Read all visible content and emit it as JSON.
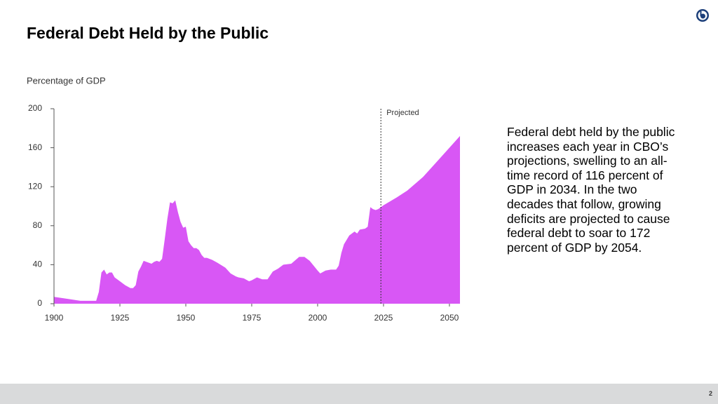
{
  "title": "Federal Debt Held by the Public",
  "text": "Federal debt held by the public increases each year in CBO’s projections, swelling to an all-time record of 116 percent of GDP in 2034. In the two decades that follow, growing deficits are projected to cause federal debt to soar to 172 percent of GDP by 2054.",
  "page_number": "2",
  "chart_data": {
    "type": "area",
    "y_label": "Percentage of GDP",
    "annotation": {
      "text": "Projected",
      "x": 2024
    },
    "x": [
      1900,
      1905,
      1910,
      1915,
      1916,
      1917,
      1918,
      1919,
      1920,
      1921,
      1922,
      1923,
      1925,
      1927,
      1929,
      1930,
      1931,
      1932,
      1933,
      1934,
      1935,
      1936,
      1937,
      1938,
      1939,
      1940,
      1941,
      1942,
      1943,
      1944,
      1945,
      1946,
      1947,
      1948,
      1949,
      1950,
      1951,
      1952,
      1953,
      1954,
      1955,
      1956,
      1957,
      1958,
      1960,
      1962,
      1965,
      1967,
      1969,
      1970,
      1972,
      1974,
      1975,
      1977,
      1979,
      1980,
      1981,
      1983,
      1985,
      1987,
      1990,
      1993,
      1995,
      1997,
      2000,
      2001,
      2003,
      2005,
      2007,
      2008,
      2009,
      2010,
      2012,
      2014,
      2015,
      2016,
      2018,
      2019,
      2020,
      2021,
      2022,
      2023,
      2024,
      2025,
      2030,
      2034,
      2040,
      2045,
      2050,
      2054
    ],
    "series": [
      {
        "name": "Debt held by the public",
        "color": "#d857f5",
        "values": [
          7,
          5,
          3,
          3,
          3,
          12,
          32,
          35,
          30,
          32,
          32,
          27,
          23,
          19,
          16,
          16,
          19,
          33,
          38,
          44,
          43,
          42,
          41,
          43,
          44,
          43,
          46,
          66,
          87,
          104,
          103,
          106,
          94,
          84,
          78,
          79,
          64,
          60,
          57,
          57,
          55,
          50,
          47,
          47,
          45,
          42,
          37,
          31,
          28,
          27,
          26,
          23,
          24,
          27,
          25,
          25,
          25,
          33,
          36,
          40,
          41,
          48,
          48,
          44,
          34,
          31,
          34,
          35,
          35,
          39,
          52,
          61,
          70,
          74,
          72,
          76,
          77,
          79,
          99,
          97,
          96,
          97,
          99,
          101,
          109,
          116,
          130,
          145,
          160,
          172
        ]
      }
    ],
    "xlim": [
      1900,
      2054
    ],
    "xticks": [
      1900,
      1925,
      1950,
      1975,
      2000,
      2025,
      2050
    ],
    "ylim": [
      0,
      200
    ],
    "yticks": [
      0,
      40,
      80,
      120,
      160,
      200
    ],
    "grid": false
  }
}
